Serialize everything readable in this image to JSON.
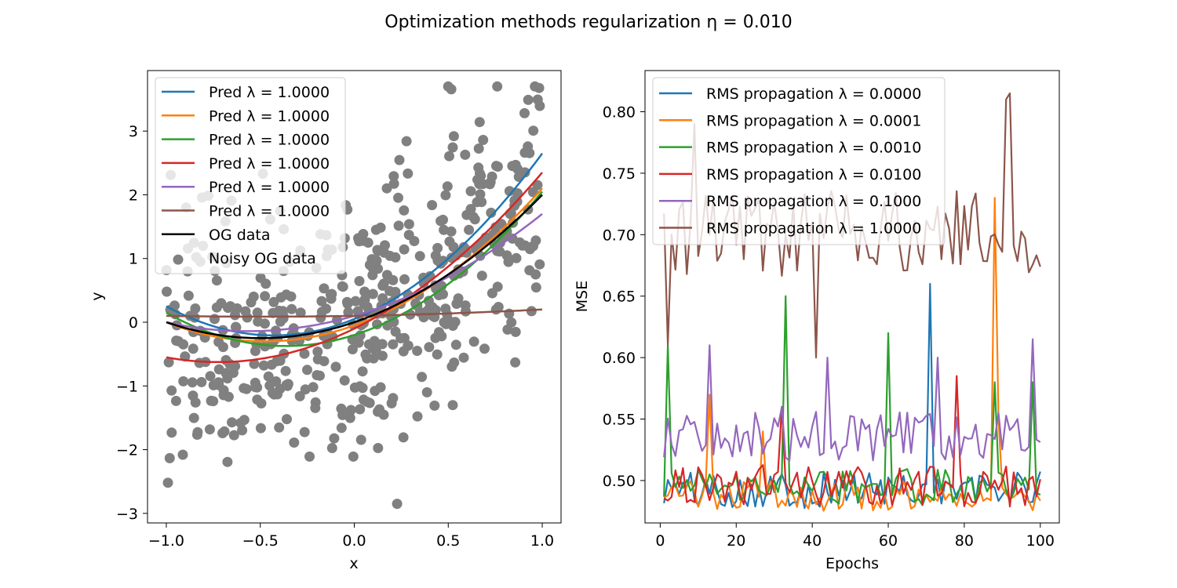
{
  "figure": {
    "title": "Optimization methods regularization η = 0.010"
  },
  "chart_data": [
    {
      "type": "scatter",
      "xlabel": "x",
      "ylabel": "y",
      "xlim": [
        -1.1,
        1.1
      ],
      "ylim": [
        -3.15,
        3.95
      ],
      "xticks": [
        -1.0,
        -0.5,
        0.0,
        0.5,
        1.0
      ],
      "xtick_labels": [
        "−1.0",
        "−0.5",
        "0.0",
        "0.5",
        "1.0"
      ],
      "yticks": [
        -3,
        -2,
        -1,
        0,
        1,
        2,
        3
      ],
      "ytick_labels": [
        "−3",
        "−2",
        "−1",
        "0",
        "1",
        "2",
        "3"
      ],
      "grid": false,
      "legend_placement": "upper left",
      "curves": [
        {
          "label": "Pred λ = 1.0000",
          "color": "#1f77b4",
          "coef": [
            0.05,
            1.2,
            1.4
          ]
        },
        {
          "label": "Pred λ = 1.0000",
          "color": "#ff7f0e",
          "coef": [
            -0.05,
            1.05,
            1.1
          ]
        },
        {
          "label": "Pred λ = 1.0000",
          "color": "#2ca02c",
          "coef": [
            -0.2,
            0.95,
            1.3
          ]
        },
        {
          "label": "Pred λ = 1.0000",
          "color": "#d62728",
          "coef": [
            -0.1,
            1.45,
            1.0
          ]
        },
        {
          "label": "Pred λ = 1.0000",
          "color": "#9467bd",
          "coef": [
            0.1,
            0.85,
            0.75
          ]
        },
        {
          "label": "Pred λ = 1.0000",
          "color": "#8c564b",
          "coef": [
            0.1,
            0.05,
            0.05
          ]
        }
      ],
      "og_data": {
        "label": "OG data",
        "color": "#000000",
        "coef": [
          0.0,
          1.0,
          1.0
        ]
      },
      "noisy": {
        "label": "Noisy OG data",
        "color": "#808080",
        "n": 500,
        "noise_sd": 1.0
      }
    },
    {
      "type": "line",
      "xlabel": "Epochs",
      "ylabel": "MSE",
      "xlim": [
        -4,
        105
      ],
      "ylim": [
        0.4655,
        0.8335
      ],
      "xticks": [
        0,
        20,
        40,
        60,
        80,
        100
      ],
      "xtick_labels": [
        "0",
        "20",
        "40",
        "60",
        "80",
        "100"
      ],
      "yticks": [
        0.5,
        0.55,
        0.6,
        0.65,
        0.7,
        0.75,
        0.8
      ],
      "ytick_labels": [
        "0.50",
        "0.55",
        "0.60",
        "0.65",
        "0.70",
        "0.75",
        "0.80"
      ],
      "grid": false,
      "legend_placement": "upper left",
      "epochs": {
        "start": 1,
        "end": 100
      },
      "series": [
        {
          "name": "RMS propagation λ = 0.0000",
          "color": "#1f77b4",
          "base": 0.488,
          "amp": 0.03,
          "spikes": [
            [
              71,
              0.66
            ],
            [
              72,
              0.49
            ]
          ]
        },
        {
          "name": "RMS propagation λ = 0.0001",
          "color": "#ff7f0e",
          "base": 0.484,
          "amp": 0.025,
          "spikes": [
            [
              13,
              0.57
            ],
            [
              27,
              0.54
            ],
            [
              88,
              0.73
            ],
            [
              89,
              0.55
            ]
          ]
        },
        {
          "name": "RMS propagation λ = 0.0010",
          "color": "#2ca02c",
          "base": 0.49,
          "amp": 0.03,
          "spikes": [
            [
              2,
              0.61
            ],
            [
              33,
              0.65
            ],
            [
              60,
              0.62
            ],
            [
              88,
              0.58
            ],
            [
              98,
              0.58
            ]
          ]
        },
        {
          "name": "RMS propagation λ = 0.0100",
          "color": "#d62728",
          "base": 0.49,
          "amp": 0.035,
          "spikes": [
            [
              32,
              0.56
            ],
            [
              78,
              0.585
            ]
          ]
        },
        {
          "name": "RMS propagation λ = 0.1000",
          "color": "#9467bd",
          "base": 0.53,
          "amp": 0.04,
          "spikes": [
            [
              13,
              0.61
            ],
            [
              32,
              0.56
            ],
            [
              44,
              0.6
            ],
            [
              73,
              0.6
            ],
            [
              98,
              0.615
            ]
          ]
        },
        {
          "name": "RMS propagation λ = 1.0000",
          "color": "#8c564b",
          "base": 0.69,
          "amp": 0.07,
          "spikes": [
            [
              2,
              0.61
            ],
            [
              9,
              0.79
            ],
            [
              41,
              0.6
            ],
            [
              91,
              0.81
            ],
            [
              92,
              0.815
            ]
          ]
        }
      ]
    }
  ]
}
